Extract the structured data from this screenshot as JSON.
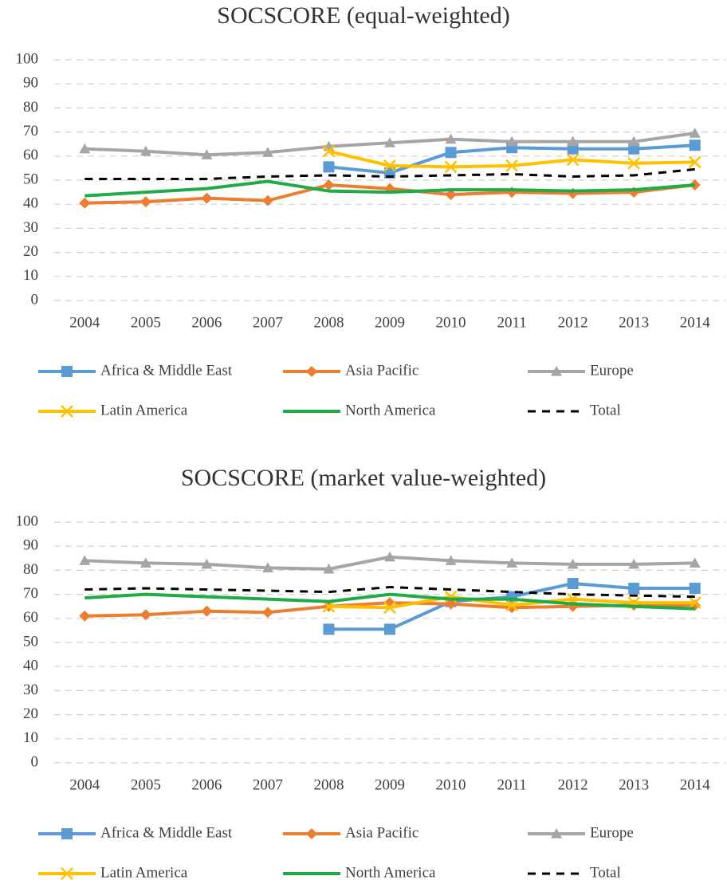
{
  "chart_data": [
    {
      "type": "line",
      "title": "SOCSCORE (equal-weighted)",
      "categories": [
        "2004",
        "2005",
        "2006",
        "2007",
        "2008",
        "2009",
        "2010",
        "2011",
        "2012",
        "2013",
        "2014"
      ],
      "ylim": [
        0,
        100
      ],
      "yticks": [
        0,
        10,
        20,
        30,
        40,
        50,
        60,
        70,
        80,
        90,
        100
      ],
      "grid": true,
      "legend": "bottom",
      "series": [
        {
          "name": "Africa & Middle East",
          "color": "#5b9bd5",
          "marker": "square",
          "values": [
            null,
            null,
            null,
            null,
            55.5,
            53,
            61.5,
            63.5,
            63,
            63,
            64.5
          ]
        },
        {
          "name": "Asia Pacific",
          "color": "#ed7d31",
          "marker": "diamond",
          "values": [
            40.5,
            41,
            42.5,
            41.5,
            48,
            46.5,
            44,
            45,
            44.5,
            45,
            48
          ]
        },
        {
          "name": "Europe",
          "color": "#a5a5a5",
          "marker": "triangle",
          "values": [
            63,
            62,
            60.5,
            61.5,
            64,
            65.5,
            67,
            66,
            66,
            66,
            69.5
          ]
        },
        {
          "name": "Latin America",
          "color": "#ffc000",
          "marker": "x",
          "values": [
            null,
            null,
            null,
            null,
            62,
            56,
            55.5,
            56,
            58.5,
            57,
            57.5
          ]
        },
        {
          "name": "North America",
          "color": "#1eab48",
          "marker": "none",
          "values": [
            43.5,
            45,
            46.5,
            49.5,
            45.5,
            45,
            46,
            46,
            45.5,
            46,
            48
          ]
        },
        {
          "name": "Total",
          "color": "#000000",
          "marker": "none",
          "dash": true,
          "values": [
            50.5,
            50.5,
            50.5,
            51.5,
            52,
            51.5,
            52,
            52.5,
            51.5,
            52,
            54.5
          ]
        }
      ]
    },
    {
      "type": "line",
      "title": "SOCSCORE (market value-weighted)",
      "categories": [
        "2004",
        "2005",
        "2006",
        "2007",
        "2008",
        "2009",
        "2010",
        "2011",
        "2012",
        "2013",
        "2014"
      ],
      "ylim": [
        0,
        100
      ],
      "yticks": [
        0,
        10,
        20,
        30,
        40,
        50,
        60,
        70,
        80,
        90,
        100
      ],
      "grid": true,
      "legend": "bottom",
      "series": [
        {
          "name": "Africa & Middle East",
          "color": "#5b9bd5",
          "marker": "square",
          "values": [
            null,
            null,
            null,
            null,
            55.5,
            55.5,
            67,
            69,
            74.5,
            72.5,
            72.5
          ]
        },
        {
          "name": "Asia Pacific",
          "color": "#ed7d31",
          "marker": "diamond",
          "values": [
            61,
            61.5,
            63,
            62.5,
            65,
            66.5,
            66,
            64.5,
            65,
            65.5,
            65.5
          ]
        },
        {
          "name": "Europe",
          "color": "#a5a5a5",
          "marker": "triangle",
          "values": [
            84,
            83,
            82.5,
            81,
            80.5,
            85.5,
            84,
            83,
            82.5,
            82.5,
            83
          ]
        },
        {
          "name": "Latin America",
          "color": "#ffc000",
          "marker": "x",
          "values": [
            null,
            null,
            null,
            null,
            65,
            64.5,
            69,
            65.5,
            68,
            66.5,
            66.5
          ]
        },
        {
          "name": "North America",
          "color": "#1eab48",
          "marker": "none",
          "values": [
            68.5,
            70,
            69,
            68,
            67,
            70,
            68,
            68,
            66,
            65,
            64
          ]
        },
        {
          "name": "Total",
          "color": "#000000",
          "marker": "none",
          "dash": true,
          "values": [
            72,
            72.5,
            72,
            71.5,
            71,
            73,
            72,
            71,
            70,
            69.5,
            69
          ]
        }
      ]
    }
  ]
}
